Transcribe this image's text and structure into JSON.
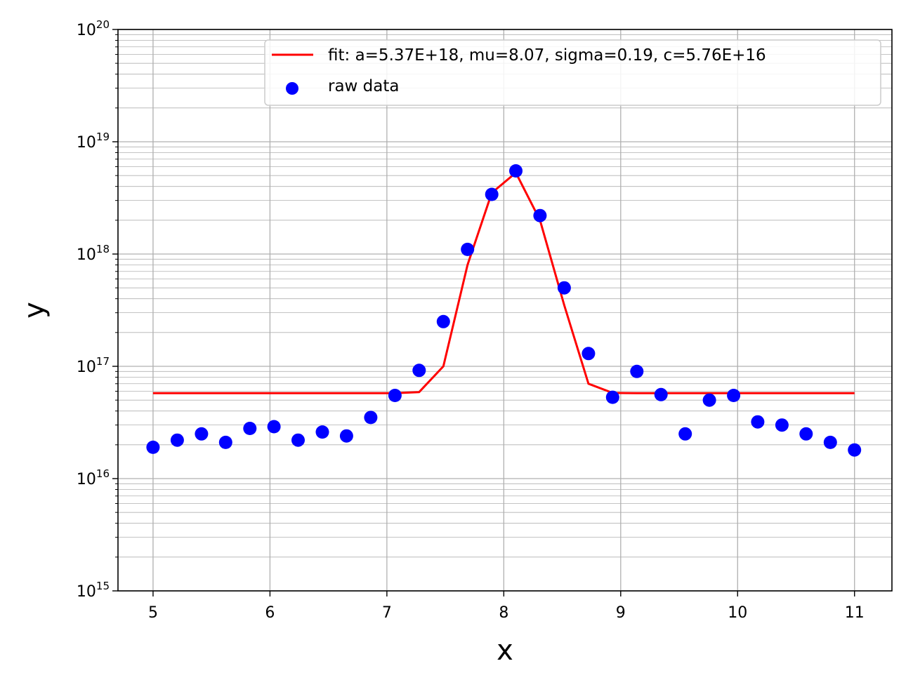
{
  "chart_data": {
    "type": "scatter",
    "title": "",
    "xlabel": "x",
    "ylabel": "y",
    "xlim": [
      4.7,
      11.32
    ],
    "ylim": [
      1000000000000000.0,
      1e+20
    ],
    "yscale": "log",
    "grid": "both (major and minor)",
    "legend_position": "top-right",
    "x_ticks": [
      "5",
      "6",
      "7",
      "8",
      "9",
      "10",
      "11"
    ],
    "y_ticks": [
      {
        "base": "10",
        "exp": "15"
      },
      {
        "base": "10",
        "exp": "16"
      },
      {
        "base": "10",
        "exp": "17"
      },
      {
        "base": "10",
        "exp": "18"
      },
      {
        "base": "10",
        "exp": "19"
      },
      {
        "base": "10",
        "exp": "20"
      }
    ],
    "series": [
      {
        "name": "fit: a=5.37E+18, mu=8.07, sigma=0.19, c=5.76E+16",
        "kind": "line",
        "color": "#ff0000",
        "x": [
          5.0,
          5.207,
          5.414,
          5.621,
          5.828,
          6.034,
          6.241,
          6.448,
          6.655,
          6.862,
          7.069,
          7.276,
          7.483,
          7.69,
          7.897,
          8.103,
          8.31,
          8.517,
          8.724,
          8.931,
          9.138,
          9.345,
          9.552,
          9.759,
          9.966,
          10.172,
          10.379,
          10.586,
          10.793,
          11.0
        ],
        "y": [
          5.76e+16,
          5.76e+16,
          5.76e+16,
          5.76e+16,
          5.76e+16,
          5.76e+16,
          5.76e+16,
          5.76e+16,
          5.76e+16,
          5.76e+16,
          5.76e+16,
          5.9e+16,
          1e+17,
          8e+17,
          3.5e+18,
          5.3e+18,
          2e+18,
          3.5e+17,
          7e+16,
          5.8e+16,
          5.76e+16,
          5.76e+16,
          5.76e+16,
          5.76e+16,
          5.76e+16,
          5.76e+16,
          5.76e+16,
          5.76e+16,
          5.76e+16,
          5.76e+16
        ]
      },
      {
        "name": "raw data",
        "kind": "scatter",
        "color": "#0000ff",
        "x": [
          5.0,
          5.207,
          5.414,
          5.621,
          5.828,
          6.034,
          6.241,
          6.448,
          6.655,
          6.862,
          7.069,
          7.276,
          7.483,
          7.69,
          7.897,
          8.103,
          8.31,
          8.517,
          8.724,
          8.931,
          9.138,
          9.345,
          9.552,
          9.759,
          9.966,
          10.172,
          10.379,
          10.586,
          10.793,
          11.0
        ],
        "y": [
          1.9e+16,
          2.2e+16,
          2.5e+16,
          2.1e+16,
          2.8e+16,
          2.9e+16,
          2.2e+16,
          2.6e+16,
          2.4e+16,
          3.5e+16,
          5.5e+16,
          9.2e+16,
          2.5e+17,
          1.1e+18,
          3.4e+18,
          5.5e+18,
          2.2e+18,
          5e+17,
          1.3e+17,
          5.3e+16,
          9e+16,
          5.6e+16,
          2.5e+16,
          5e+16,
          5.5e+16,
          3.2e+16,
          3e+16,
          2.5e+16,
          2.1e+16,
          1.8e+16
        ]
      }
    ]
  }
}
